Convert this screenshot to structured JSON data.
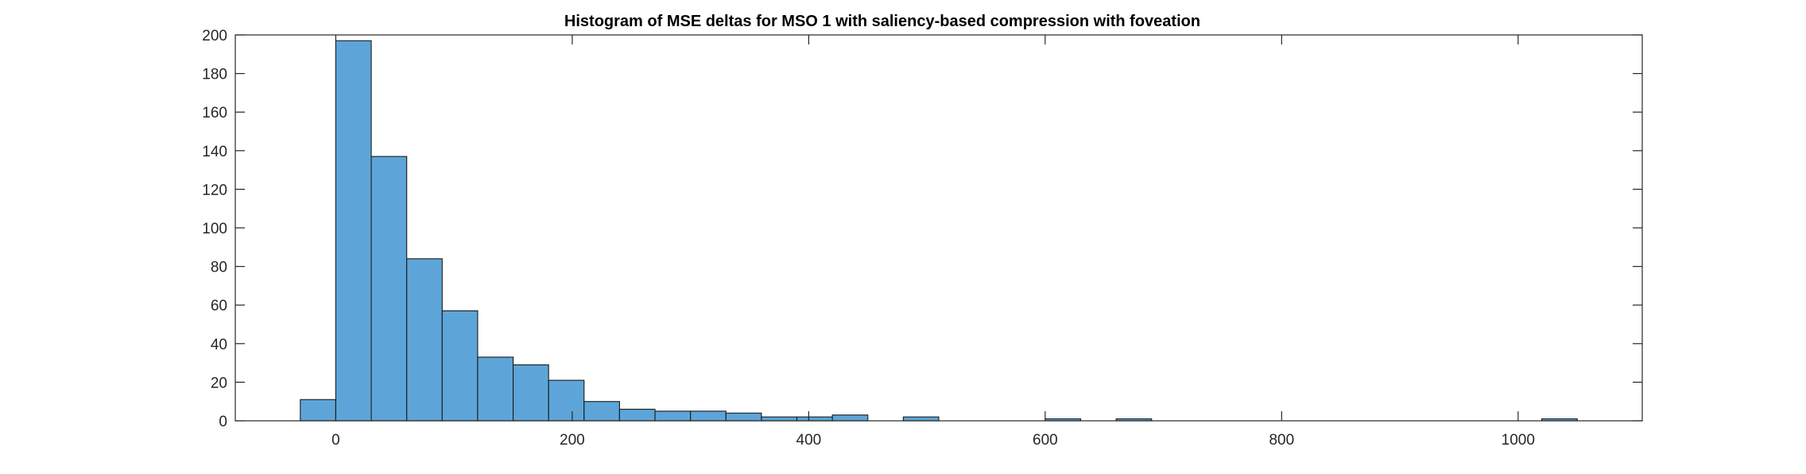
{
  "chart_data": {
    "type": "bar",
    "title": "Histogram of MSE deltas for MSO 1 with saliency-based compression with foveation",
    "xlabel": "",
    "ylabel": "",
    "xlim": [
      -85,
      1105
    ],
    "ylim": [
      0,
      200
    ],
    "bin_width": 30,
    "bin_edges_start": -30,
    "x_ticks": [
      0,
      200,
      400,
      600,
      800,
      1000
    ],
    "y_ticks": [
      0,
      20,
      40,
      60,
      80,
      100,
      120,
      140,
      160,
      180,
      200
    ],
    "grid": false,
    "legend": "none",
    "bar_color": "#5DA5D8",
    "edge_color": "#1a1a1a",
    "values": [
      11,
      197,
      137,
      84,
      57,
      33,
      29,
      21,
      10,
      6,
      5,
      5,
      4,
      2,
      2,
      3,
      0,
      2,
      0,
      0,
      0,
      1,
      0,
      1,
      0,
      0,
      0,
      0,
      0,
      0,
      0,
      0,
      0,
      0,
      0,
      1
    ]
  }
}
